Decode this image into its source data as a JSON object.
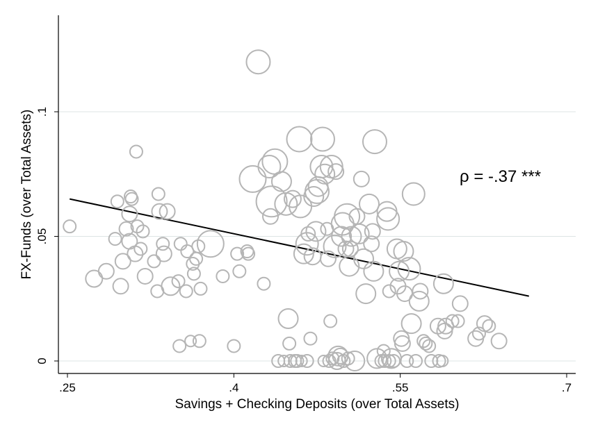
{
  "chart_data": {
    "type": "scatter",
    "xlabel": "Savings + Checking Deposits (over Total Assets)",
    "ylabel": "FX-Funds (over Total Assets)",
    "xlim": [
      0.25,
      0.7
    ],
    "ylim": [
      0,
      0.135
    ],
    "x_ticks": [
      0.25,
      0.4,
      0.55,
      0.7
    ],
    "x_tick_labels": [
      ".25",
      ".4",
      ".55",
      ".7"
    ],
    "y_ticks": [
      0,
      0.05,
      0.1
    ],
    "y_tick_labels": [
      "0",
      ".05",
      ".1"
    ],
    "grid": "horizontal",
    "legend": "none",
    "annotation": "ρ = -.37 ***",
    "colors": {
      "markers": "#b5b5b5",
      "fit_line": "#000000",
      "grid": "#dde4e4",
      "axis": "#000000"
    },
    "fit_line": {
      "x": [
        0.252,
        0.666
      ],
      "y": [
        0.065,
        0.026
      ]
    },
    "points": [
      [
        0.252,
        0.054,
        9
      ],
      [
        0.274,
        0.033,
        12
      ],
      [
        0.285,
        0.036,
        11
      ],
      [
        0.293,
        0.049,
        9
      ],
      [
        0.295,
        0.064,
        9
      ],
      [
        0.3,
        0.04,
        11
      ],
      [
        0.298,
        0.03,
        11
      ],
      [
        0.303,
        0.053,
        10
      ],
      [
        0.306,
        0.059,
        11
      ],
      [
        0.307,
        0.066,
        9
      ],
      [
        0.308,
        0.065,
        9
      ],
      [
        0.306,
        0.048,
        11
      ],
      [
        0.311,
        0.043,
        11
      ],
      [
        0.313,
        0.054,
        9
      ],
      [
        0.316,
        0.045,
        9
      ],
      [
        0.318,
        0.052,
        9
      ],
      [
        0.32,
        0.034,
        11
      ],
      [
        0.312,
        0.084,
        9
      ],
      [
        0.328,
        0.04,
        9
      ],
      [
        0.331,
        0.028,
        9
      ],
      [
        0.332,
        0.067,
        9
      ],
      [
        0.333,
        0.06,
        11
      ],
      [
        0.336,
        0.047,
        9
      ],
      [
        0.337,
        0.043,
        11
      ],
      [
        0.34,
        0.06,
        11
      ],
      [
        0.343,
        0.03,
        13
      ],
      [
        0.35,
        0.032,
        9
      ],
      [
        0.351,
        0.006,
        9
      ],
      [
        0.352,
        0.047,
        9
      ],
      [
        0.357,
        0.028,
        9
      ],
      [
        0.358,
        0.044,
        9
      ],
      [
        0.361,
        0.008,
        8
      ],
      [
        0.363,
        0.039,
        9
      ],
      [
        0.364,
        0.035,
        9
      ],
      [
        0.366,
        0.041,
        9
      ],
      [
        0.368,
        0.046,
        9
      ],
      [
        0.37,
        0.029,
        9
      ],
      [
        0.369,
        0.008,
        9
      ],
      [
        0.379,
        0.047,
        19
      ],
      [
        0.39,
        0.034,
        9
      ],
      [
        0.4,
        0.006,
        9
      ],
      [
        0.403,
        0.043,
        9
      ],
      [
        0.405,
        0.036,
        9
      ],
      [
        0.412,
        0.044,
        9
      ],
      [
        0.413,
        0.043,
        9
      ],
      [
        0.422,
        0.12,
        17
      ],
      [
        0.417,
        0.073,
        19
      ],
      [
        0.427,
        0.031,
        9
      ],
      [
        0.432,
        0.078,
        16
      ],
      [
        0.433,
        0.058,
        11
      ],
      [
        0.434,
        0.064,
        22
      ],
      [
        0.437,
        0.08,
        18
      ],
      [
        0.44,
        0.0,
        9
      ],
      [
        0.443,
        0.072,
        14
      ],
      [
        0.445,
        0.0,
        8
      ],
      [
        0.447,
        0.063,
        16
      ],
      [
        0.449,
        0.017,
        14
      ],
      [
        0.45,
        0.007,
        9
      ],
      [
        0.451,
        0.0,
        9
      ],
      [
        0.453,
        0.065,
        12
      ],
      [
        0.455,
        0.0,
        9
      ],
      [
        0.457,
        0.0,
        9
      ],
      [
        0.459,
        0.089,
        18
      ],
      [
        0.46,
        0.062,
        16
      ],
      [
        0.461,
        0.0,
        8
      ],
      [
        0.463,
        0.043,
        14
      ],
      [
        0.466,
        0.0,
        9
      ],
      [
        0.466,
        0.047,
        16
      ],
      [
        0.467,
        0.051,
        10
      ],
      [
        0.469,
        0.009,
        9
      ],
      [
        0.471,
        0.042,
        12
      ],
      [
        0.472,
        0.066,
        14
      ],
      [
        0.474,
        0.052,
        14
      ],
      [
        0.475,
        0.068,
        17
      ],
      [
        0.476,
        0.07,
        14
      ],
      [
        0.479,
        0.078,
        16
      ],
      [
        0.48,
        0.089,
        17
      ],
      [
        0.481,
        0.0,
        8
      ],
      [
        0.482,
        0.075,
        14
      ],
      [
        0.484,
        0.053,
        9
      ],
      [
        0.485,
        0.041,
        11
      ],
      [
        0.486,
        0.0,
        9
      ],
      [
        0.487,
        0.016,
        9
      ],
      [
        0.488,
        0.078,
        16
      ],
      [
        0.489,
        0.001,
        9
      ],
      [
        0.491,
        0.046,
        16
      ],
      [
        0.492,
        0.076,
        11
      ],
      [
        0.493,
        0.0,
        12
      ],
      [
        0.494,
        0.002,
        14
      ],
      [
        0.496,
        0.002,
        11
      ],
      [
        0.497,
        0.05,
        14
      ],
      [
        0.498,
        0.055,
        16
      ],
      [
        0.499,
        0.0,
        9
      ],
      [
        0.501,
        0.045,
        11
      ],
      [
        0.502,
        0.058,
        18
      ],
      [
        0.503,
        0.001,
        9
      ],
      [
        0.504,
        0.038,
        14
      ],
      [
        0.505,
        0.045,
        11
      ],
      [
        0.506,
        0.05,
        14
      ],
      [
        0.509,
        0.0,
        14
      ],
      [
        0.511,
        0.058,
        11
      ],
      [
        0.513,
        0.051,
        14
      ],
      [
        0.515,
        0.073,
        11
      ],
      [
        0.517,
        0.041,
        14
      ],
      [
        0.519,
        0.027,
        14
      ],
      [
        0.522,
        0.063,
        14
      ],
      [
        0.524,
        0.047,
        11
      ],
      [
        0.525,
        0.052,
        11
      ],
      [
        0.526,
        0.036,
        14
      ],
      [
        0.527,
        0.088,
        17
      ],
      [
        0.529,
        0.001,
        14
      ],
      [
        0.533,
        0.0,
        9
      ],
      [
        0.535,
        0.004,
        9
      ],
      [
        0.536,
        0.0,
        9
      ],
      [
        0.538,
        0.06,
        14
      ],
      [
        0.539,
        0.057,
        16
      ],
      [
        0.54,
        0.0,
        9
      ],
      [
        0.54,
        0.028,
        9
      ],
      [
        0.542,
        0.001,
        14
      ],
      [
        0.544,
        0.0,
        9
      ],
      [
        0.547,
        0.045,
        14
      ],
      [
        0.548,
        0.03,
        11
      ],
      [
        0.549,
        0.036,
        14
      ],
      [
        0.551,
        0.009,
        11
      ],
      [
        0.552,
        0.007,
        11
      ],
      [
        0.553,
        0.044,
        14
      ],
      [
        0.554,
        0.027,
        11
      ],
      [
        0.556,
        0.0,
        9
      ],
      [
        0.558,
        0.037,
        16
      ],
      [
        0.56,
        0.015,
        14
      ],
      [
        0.562,
        0.067,
        16
      ],
      [
        0.564,
        0.0,
        9
      ],
      [
        0.567,
        0.024,
        14
      ],
      [
        0.568,
        0.028,
        11
      ],
      [
        0.571,
        0.008,
        9
      ],
      [
        0.573,
        0.007,
        9
      ],
      [
        0.576,
        0.006,
        9
      ],
      [
        0.578,
        0.0,
        9
      ],
      [
        0.584,
        0.014,
        11
      ],
      [
        0.585,
        0.0,
        9
      ],
      [
        0.588,
        0.0,
        8
      ],
      [
        0.589,
        0.031,
        14
      ],
      [
        0.59,
        0.012,
        11
      ],
      [
        0.591,
        0.014,
        11
      ],
      [
        0.597,
        0.016,
        9
      ],
      [
        0.602,
        0.016,
        9
      ],
      [
        0.604,
        0.023,
        11
      ],
      [
        0.618,
        0.009,
        11
      ],
      [
        0.621,
        0.011,
        9
      ],
      [
        0.626,
        0.015,
        11
      ],
      [
        0.63,
        0.014,
        9
      ],
      [
        0.639,
        0.008,
        11
      ]
    ]
  }
}
